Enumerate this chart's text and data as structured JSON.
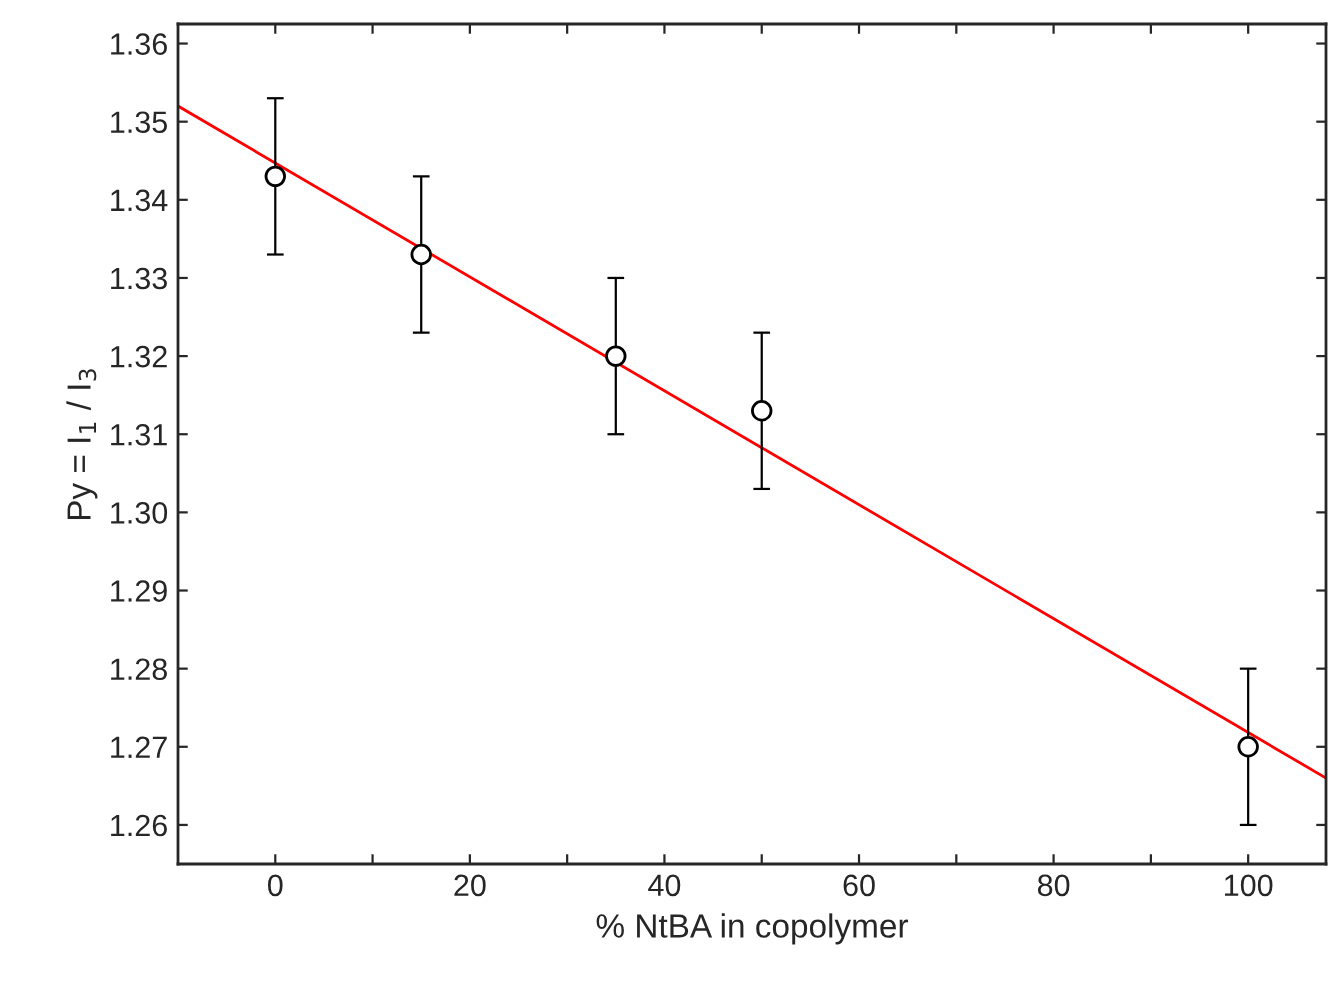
{
  "chart_data": {
    "type": "scatter",
    "xlabel": "% NtBA in copolymer",
    "ylabel": "Py = I$_{1}$ / I$_{3}$",
    "series": [
      {
        "color": "#000000",
        "x": [
          0,
          15,
          35,
          50,
          100
        ],
        "values": [
          1.343,
          1.333,
          1.32,
          1.313,
          1.27
        ],
        "errors": [
          0.01,
          0.01,
          0.01,
          0.01,
          0.01
        ],
        "marker": "circle"
      },
      {
        "type": "line",
        "color": "#ff0000",
        "x": [
          -10,
          108
        ],
        "values": [
          1.352,
          1.266
        ],
        "marker": "none",
        "line_style": "solid"
      }
    ],
    "xlim": [
      -10,
      108
    ],
    "ylim": [
      1.255,
      1.3625
    ],
    "xticks": [
      0,
      {
        "value": 10,
        "label": null
      },
      20,
      {
        "value": 30,
        "label": null
      },
      40,
      {
        "value": 50,
        "label": null
      },
      60,
      {
        "value": 70,
        "label": null
      },
      80,
      {
        "value": 90,
        "label": null
      },
      100
    ],
    "yticks": [
      {
        "value": 1.26,
        "label": "1.26"
      },
      {
        "value": 1.27,
        "label": "1.27"
      },
      {
        "value": 1.28,
        "label": "1.28"
      },
      {
        "value": 1.29,
        "label": "1.29"
      },
      {
        "value": 1.3,
        "label": "1.30"
      },
      {
        "value": 1.31,
        "label": "1.31"
      },
      {
        "value": 1.32,
        "label": "1.32"
      },
      {
        "value": 1.33,
        "label": "1.33"
      },
      {
        "value": 1.34,
        "label": "1.34"
      },
      {
        "value": 1.35,
        "label": "1.35"
      },
      {
        "value": 1.36,
        "label": "1.36"
      }
    ],
    "grid": false,
    "legend": false
  }
}
